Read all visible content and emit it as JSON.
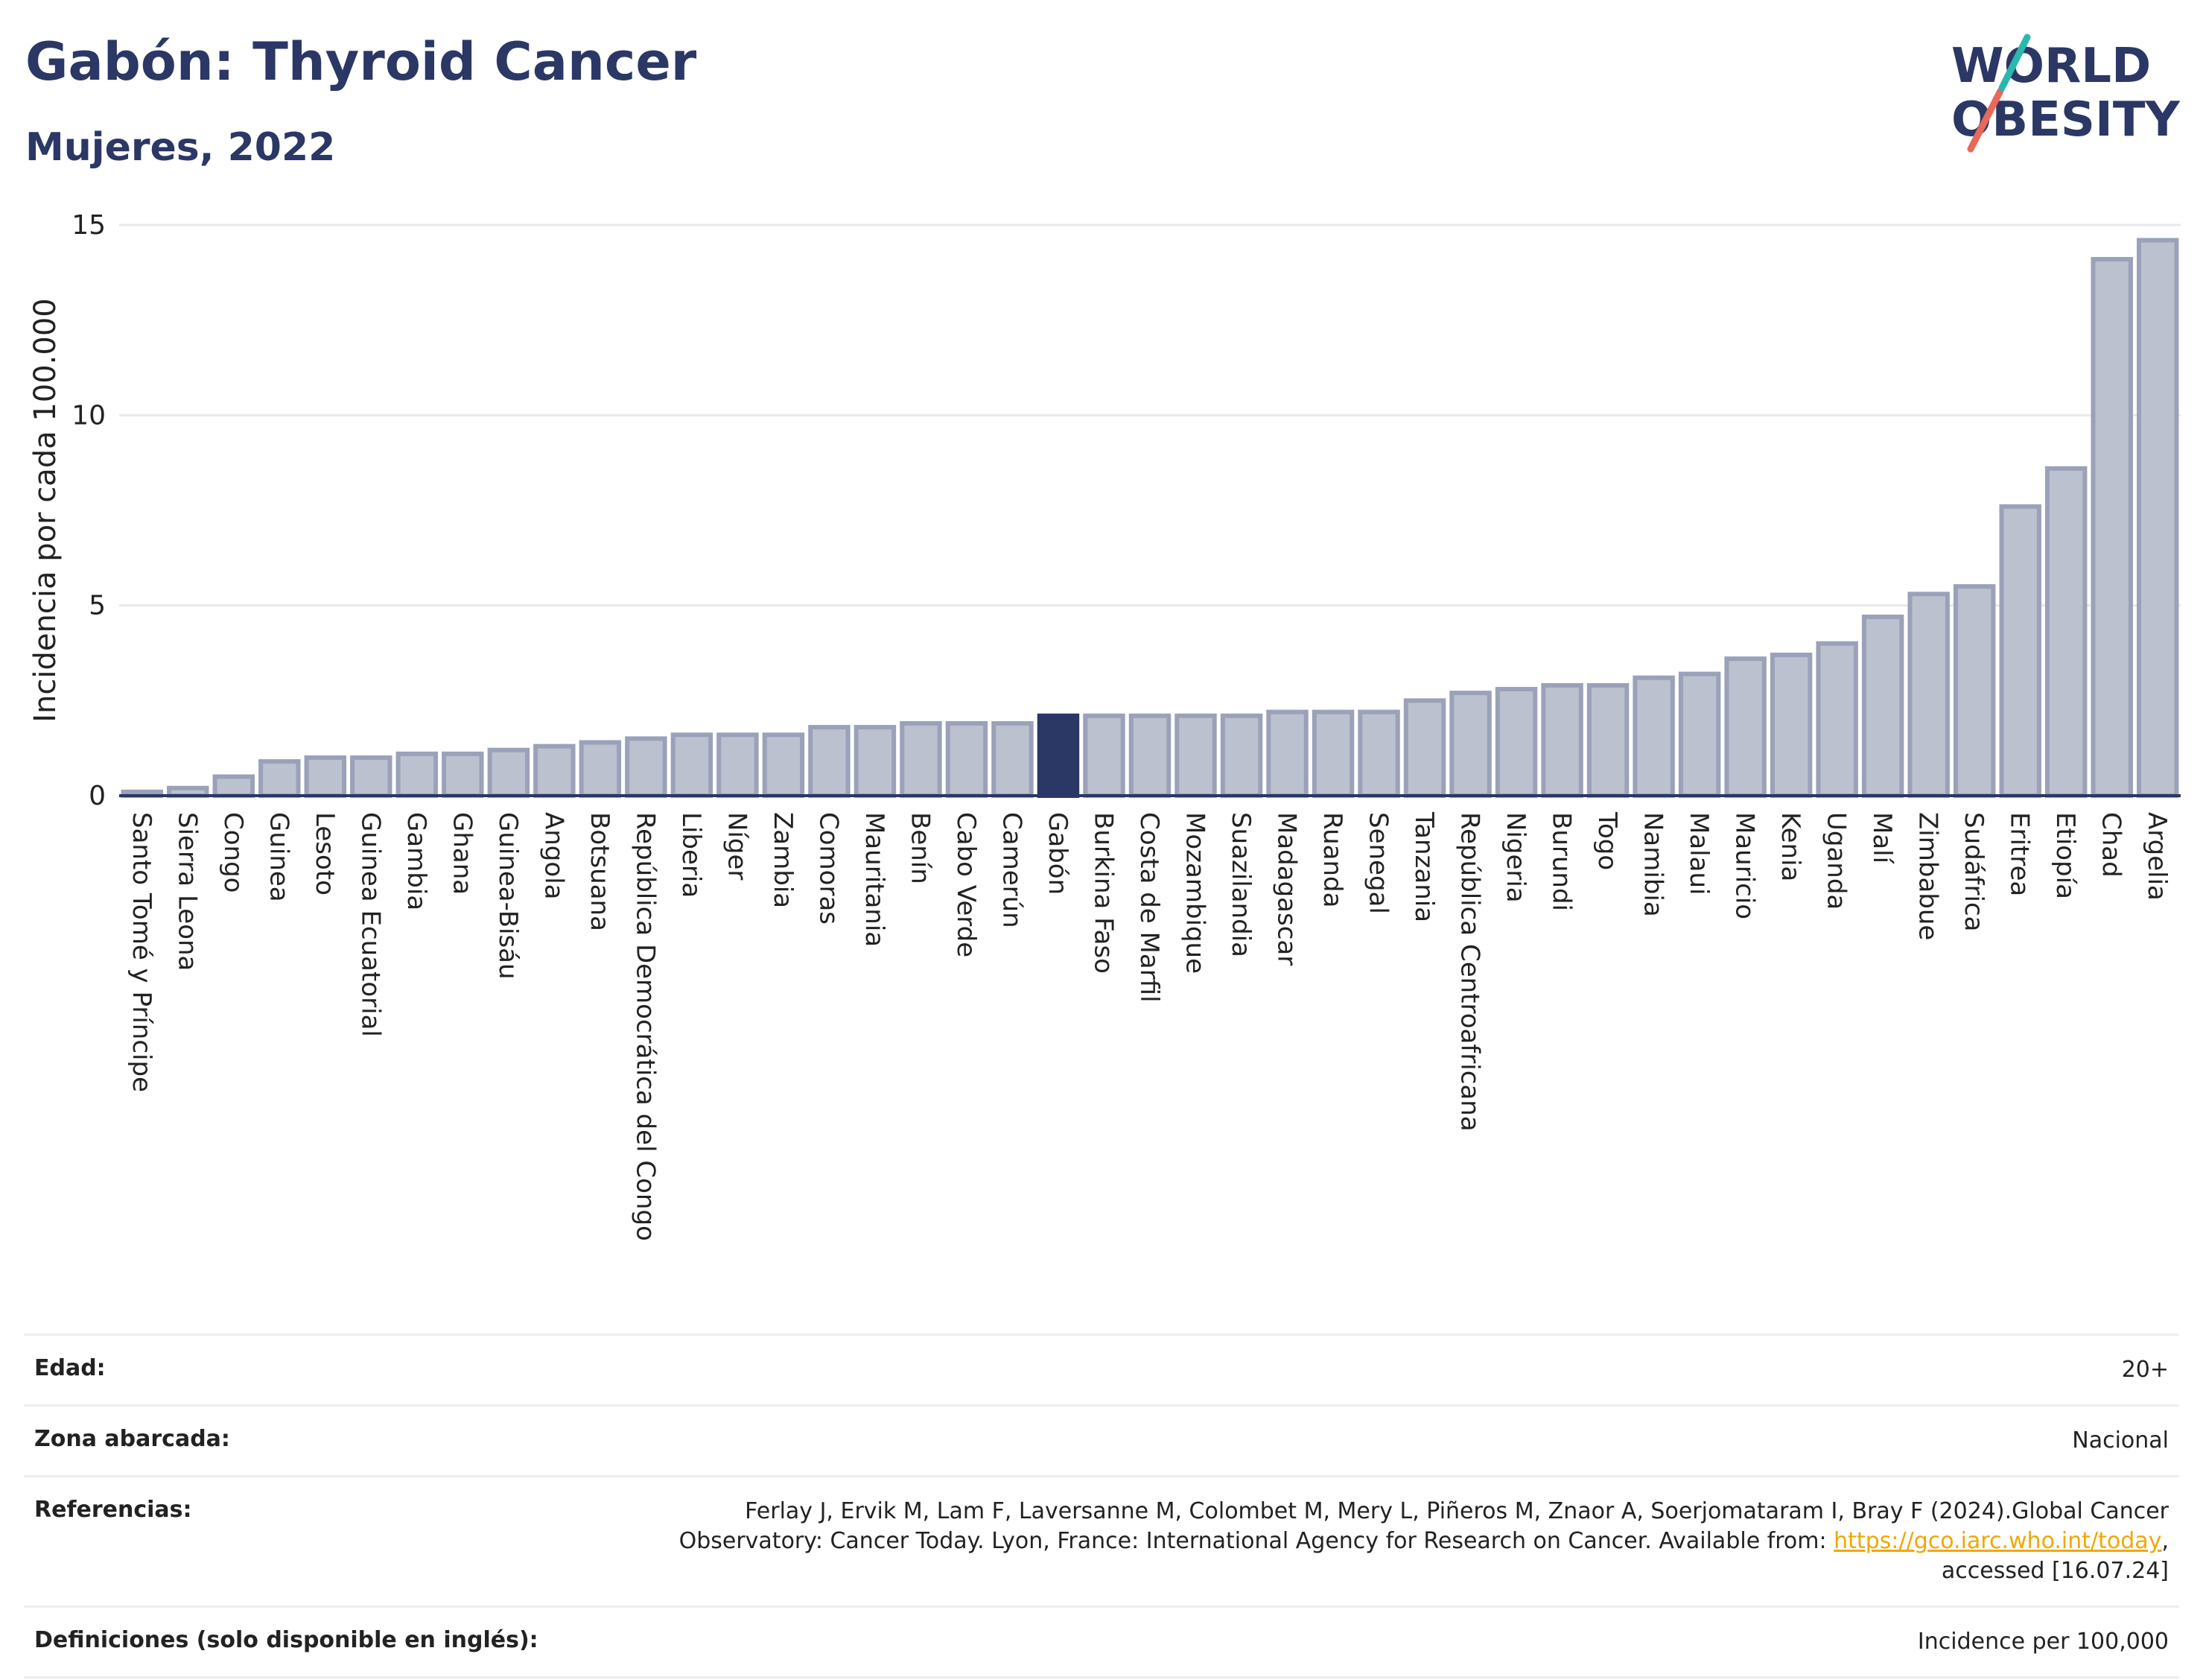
{
  "header": {
    "title": "Gabón: Thyroid Cancer",
    "subtitle": "Mujeres, 2022"
  },
  "logo": {
    "line1": "WORLD",
    "line2": "OBESITY",
    "text_color": "#2b3765",
    "slash_colors": [
      "#e8685a",
      "#2ab7ae"
    ]
  },
  "chart_data": {
    "type": "bar",
    "ylabel": "Incidencia por cada 100.000",
    "ylim": [
      0,
      15
    ],
    "yticks": [
      0,
      5,
      10,
      15
    ],
    "grid": true,
    "highlight": "Gabón",
    "colors": {
      "bar_fill": "#bcc1d0",
      "bar_stroke": "#9aa1b8",
      "highlight_fill": "#2b3765",
      "gridline": "#e8e8ee",
      "axis": "#2b3765"
    },
    "categories": [
      "Santo Tomé y Príncipe",
      "Sierra Leona",
      "Congo",
      "Guinea",
      "Lesoto",
      "Guinea Ecuatorial",
      "Gambia",
      "Ghana",
      "Guinea-Bisáu",
      "Angola",
      "Botsuana",
      "República Democrática del Congo",
      "Liberia",
      "Níger",
      "Zambia",
      "Comoras",
      "Mauritania",
      "Benín",
      "Cabo Verde",
      "Camerún",
      "Gabón",
      "Burkina Faso",
      "Costa de Marfil",
      "Mozambique",
      "Suazilandia",
      "Madagascar",
      "Ruanda",
      "Senegal",
      "Tanzania",
      "República Centroafricana",
      "Nigeria",
      "Burundi",
      "Togo",
      "Namibia",
      "Malaui",
      "Mauricio",
      "Kenia",
      "Uganda",
      "Malí",
      "Zimbabue",
      "Sudáfrica",
      "Eritrea",
      "Etiopía",
      "Chad",
      "Argelia"
    ],
    "values": [
      0.1,
      0.2,
      0.5,
      0.9,
      1.0,
      1.0,
      1.1,
      1.1,
      1.2,
      1.3,
      1.4,
      1.5,
      1.6,
      1.6,
      1.6,
      1.8,
      1.8,
      1.9,
      1.9,
      1.9,
      2.1,
      2.1,
      2.1,
      2.1,
      2.1,
      2.2,
      2.2,
      2.2,
      2.5,
      2.7,
      2.8,
      2.9,
      2.9,
      3.1,
      3.2,
      3.6,
      3.7,
      4.0,
      4.7,
      5.3,
      5.5,
      7.6,
      8.6,
      14.1,
      14.6
    ]
  },
  "info": {
    "edad_label": "Edad:",
    "edad_value": "20+",
    "zona_label": "Zona abarcada:",
    "zona_value": "Nacional",
    "ref_label": "Referencias:",
    "ref_text1": "Ferlay J, Ervik M, Lam F, Laversanne M, Colombet M, Mery L, Piñeros M, Znaor A, Soerjomataram I, Bray F (2024).Global Cancer",
    "ref_text2": "Observatory: Cancer Today. Lyon, France: International Agency for Research on Cancer. Available from: ",
    "ref_link": "https://gco.iarc.who.int/today",
    "ref_text3": ",",
    "ref_text4": "accessed [16.07.24]",
    "def_label": "Definiciones (solo disponible en inglés):",
    "def_value": "Incidence per 100,000"
  }
}
